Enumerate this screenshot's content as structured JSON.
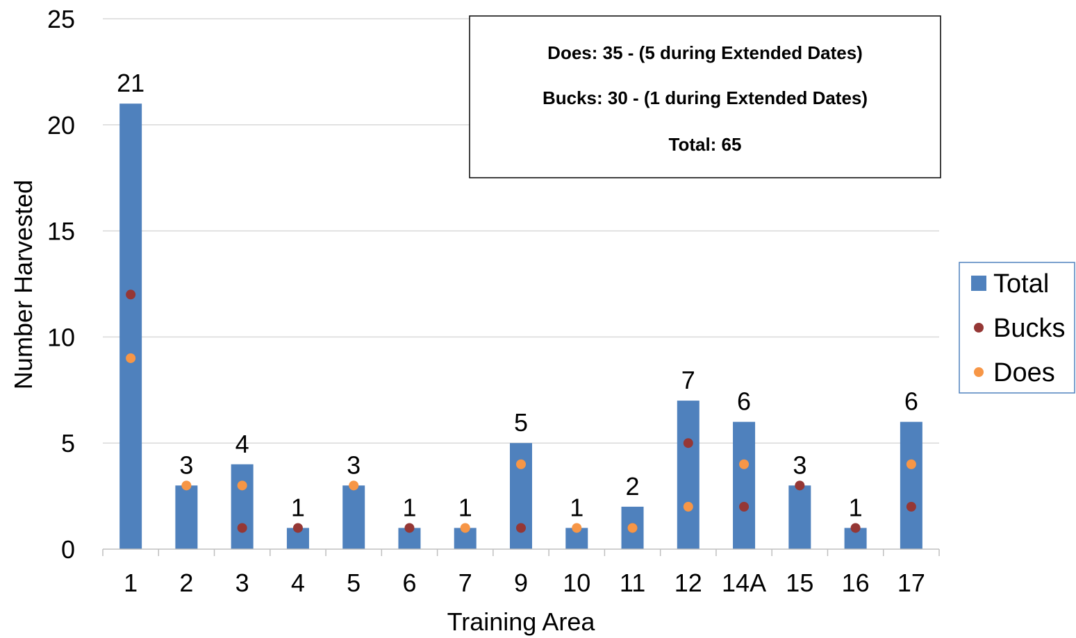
{
  "chart_data": {
    "type": "bar",
    "title": "",
    "xlabel": "Training Area",
    "ylabel": "Number Harvested",
    "ylim": [
      0,
      25
    ],
    "yticks": [
      0,
      5,
      10,
      15,
      20,
      25
    ],
    "grid": true,
    "categories": [
      "1",
      "2",
      "3",
      "4",
      "5",
      "6",
      "7",
      "9",
      "10",
      "11",
      "12",
      "14A",
      "15",
      "16",
      "17"
    ],
    "series": [
      {
        "name": "Total",
        "kind": "bar",
        "color": "#4f81bd",
        "values": [
          21,
          3,
          4,
          1,
          3,
          1,
          1,
          5,
          1,
          2,
          7,
          6,
          3,
          1,
          6
        ]
      },
      {
        "name": "Bucks",
        "kind": "marker",
        "color": "#953735",
        "values": [
          12,
          0,
          1,
          1,
          0,
          1,
          0,
          1,
          0,
          1,
          5,
          2,
          3,
          1,
          2
        ]
      },
      {
        "name": "Does",
        "kind": "marker",
        "color": "#f79646",
        "values": [
          9,
          3,
          3,
          0,
          3,
          0,
          1,
          4,
          1,
          1,
          2,
          4,
          0,
          0,
          4
        ]
      }
    ],
    "data_labels": [
      "21",
      "3",
      "4",
      "1",
      "3",
      "1",
      "1",
      "5",
      "1",
      "2",
      "7",
      "6",
      "3",
      "1",
      "6"
    ],
    "legend_position": "right",
    "annotation": [
      "Does: 35 - (5 during Extended Dates)",
      "Bucks: 30 - (1 during Extended Dates)",
      "Total: 65"
    ]
  }
}
